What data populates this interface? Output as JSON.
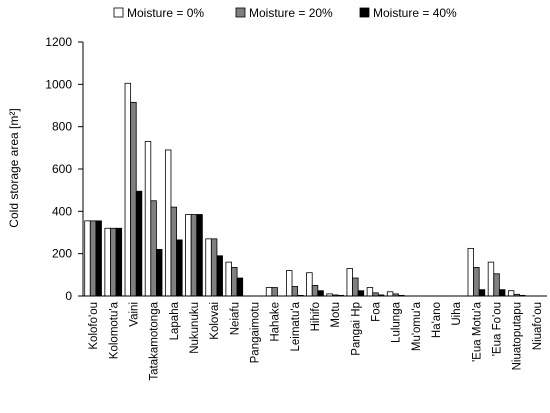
{
  "chart_data": {
    "type": "bar",
    "title": "",
    "xlabel": "",
    "ylabel": "Cold storage area [m²]",
    "ylim": [
      0,
      1200
    ],
    "yticks": [
      0,
      200,
      400,
      600,
      800,
      1000,
      1200
    ],
    "grid": false,
    "legend_position": "top",
    "categories": [
      "Kolofo'ou",
      "Kolomotu'a",
      "Vaini",
      "Tatakamotonga",
      "Lapaha",
      "Nukunuku",
      "Kolovai",
      "Neiafu",
      "Pangaimotu",
      "Hahake",
      "Leimatu'a",
      "Hihifo",
      "Motu",
      "Pangai Hp",
      "Foa",
      "Lulunga",
      "Mu'omu'a",
      "Ha'ano",
      "Uiha",
      "'Eua Motu'a",
      "'Eua Fo'ou",
      "Niuatoputapu",
      "Niuafo'ou"
    ],
    "series": [
      {
        "name": "Moisture = 0%",
        "color": "#ffffff",
        "values": [
          355,
          320,
          1005,
          730,
          690,
          385,
          270,
          160,
          0,
          40,
          120,
          110,
          10,
          130,
          40,
          20,
          0,
          0,
          0,
          225,
          160,
          25,
          0
        ]
      },
      {
        "name": "Moisture = 20%",
        "color": "#808080",
        "values": [
          355,
          320,
          915,
          450,
          420,
          385,
          270,
          135,
          0,
          40,
          45,
          50,
          5,
          85,
          15,
          10,
          0,
          0,
          0,
          135,
          105,
          8,
          0
        ]
      },
      {
        "name": "Moisture = 40%",
        "color": "#000000",
        "values": [
          355,
          320,
          495,
          220,
          265,
          385,
          190,
          85,
          0,
          0,
          3,
          25,
          3,
          25,
          5,
          3,
          0,
          0,
          0,
          30,
          30,
          3,
          0
        ]
      }
    ]
  }
}
